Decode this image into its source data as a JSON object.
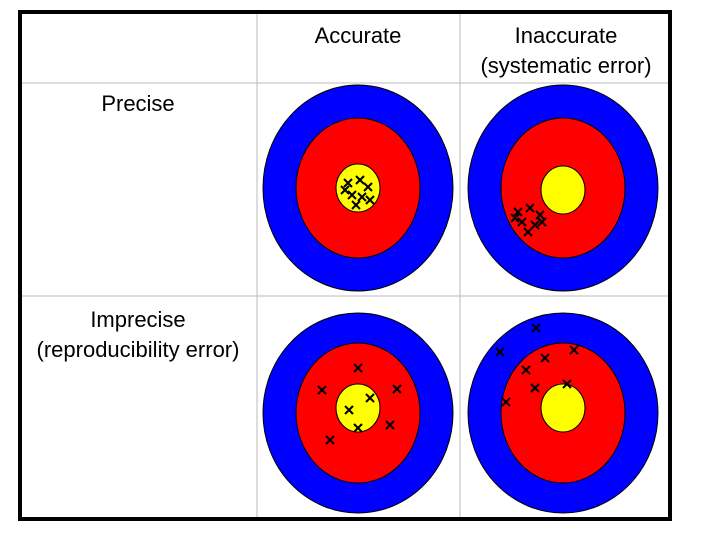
{
  "columns": [
    {
      "lines": [
        "Accurate"
      ]
    },
    {
      "lines": [
        "Inaccurate",
        "(systematic error)"
      ]
    }
  ],
  "rows": [
    {
      "lines": [
        "Precise"
      ]
    },
    {
      "lines": [
        "Imprecise",
        "(reproducibility error)"
      ]
    }
  ]
}
